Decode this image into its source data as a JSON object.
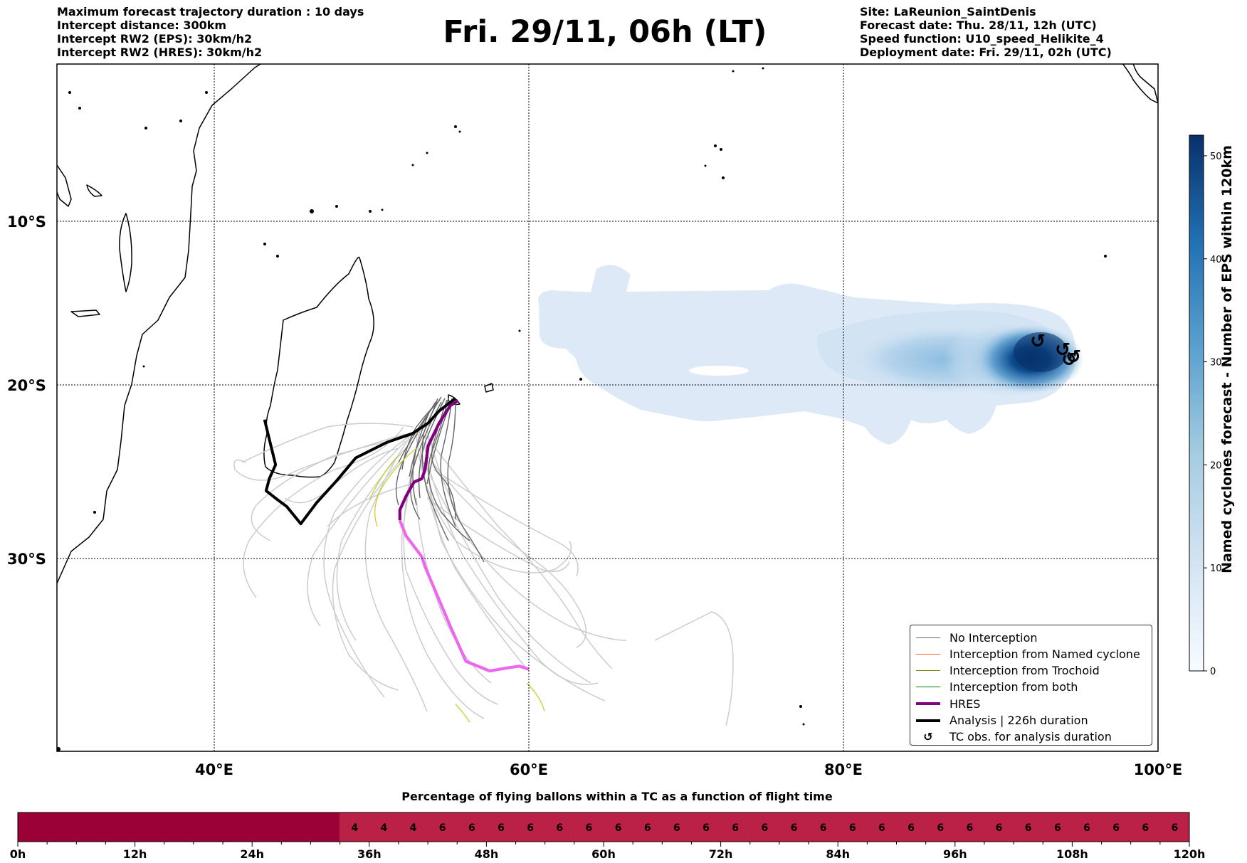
{
  "header_left": [
    "Maximum forecast trajectory duration : 10 days",
    "Intercept distance: 300km",
    "Intercept RW2 (EPS):  30km/h2",
    "Intercept RW2 (HRES): 30km/h2"
  ],
  "header_right": [
    "Site: LaReunion_SaintDenis",
    "Forecast date: Thu. 28/11, 12h (UTC)",
    "Speed function: U10_speed_Helikite_4",
    "Deployment date: Fri. 29/11, 02h (UTC)"
  ],
  "title": "Fri. 29/11, 06h (LT)",
  "colors": {
    "no_interception": "#666666",
    "named_cyclone": "#ff5722",
    "trochoid": "#808000",
    "both": "#008000",
    "hres": "#800080",
    "hres_late": "#ee66ee",
    "analysis": "#000000",
    "strip_dark": "#9b0036",
    "strip_mid": "#bb2046"
  },
  "legend": [
    {
      "label": "No Interception",
      "color": "#666666",
      "style": "thin"
    },
    {
      "label": "Interception from Named cyclone",
      "color": "#ff5722",
      "style": "thin"
    },
    {
      "label": "Interception from Trochoid",
      "color": "#808000",
      "style": "thin"
    },
    {
      "label": "Interception from both",
      "color": "#008000",
      "style": "thin"
    },
    {
      "label": "HRES",
      "color": "#800080",
      "style": "thick"
    },
    {
      "label": "Analysis | 226h duration",
      "color": "#000000",
      "style": "thick"
    },
    {
      "label": "TC obs. for analysis duration",
      "color": "#000000",
      "style": "symbol",
      "icon": "cyclone-icon"
    }
  ],
  "chart_data": [
    {
      "type": "map",
      "x_ticks": [
        {
          "value": 40,
          "label": "40°E"
        },
        {
          "value": 60,
          "label": "60°E"
        },
        {
          "value": 80,
          "label": "80°E"
        },
        {
          "value": 100,
          "label": "100°E"
        }
      ],
      "y_ticks": [
        {
          "value": -10,
          "label": "10°S"
        },
        {
          "value": -20,
          "label": "20°S"
        },
        {
          "value": -30,
          "label": "30°S"
        }
      ],
      "xlim": [
        30,
        100
      ],
      "ylim": [
        -42,
        -0.2
      ],
      "grid": true,
      "legend_position": "bottom-right",
      "hres_track": [
        [
          55.5,
          -20.9
        ],
        [
          55.0,
          -21.2
        ],
        [
          54.3,
          -22.2
        ],
        [
          53.6,
          -23.5
        ],
        [
          53.4,
          -24.9
        ],
        [
          53.2,
          -25.4
        ],
        [
          52.7,
          -25.6
        ],
        [
          52.2,
          -26.4
        ],
        [
          51.8,
          -27.2
        ],
        [
          51.8,
          -27.8
        ]
      ],
      "hres_late_track": [
        [
          51.8,
          -27.8
        ],
        [
          52.2,
          -28.7
        ],
        [
          53.2,
          -29.9
        ],
        [
          53.4,
          -30.5
        ],
        [
          55.0,
          -34.2
        ],
        [
          56.0,
          -36.4
        ],
        [
          57.5,
          -37.0
        ],
        [
          58.7,
          -36.8
        ],
        [
          59.4,
          -36.7
        ],
        [
          60.0,
          -36.9
        ]
      ],
      "analysis_track": [
        [
          55.3,
          -20.8
        ],
        [
          54.3,
          -21.5
        ],
        [
          53.6,
          -22.2
        ],
        [
          52.6,
          -22.8
        ],
        [
          51.0,
          -23.3
        ],
        [
          49.0,
          -24.2
        ],
        [
          47.8,
          -25.5
        ],
        [
          46.5,
          -26.8
        ],
        [
          45.5,
          -28.0
        ],
        [
          44.6,
          -27.0
        ],
        [
          44.0,
          -26.6
        ],
        [
          43.3,
          -26.1
        ],
        [
          43.5,
          -25.4
        ],
        [
          43.9,
          -24.6
        ],
        [
          43.6,
          -23.5
        ],
        [
          43.2,
          -22.0
        ]
      ],
      "tc_observations": [
        [
          92.4,
          -17.8
        ],
        [
          94.0,
          -18.5
        ],
        [
          94.4,
          -19.0
        ],
        [
          94.6,
          -18.8
        ]
      ],
      "density_field": {
        "colorbar": {
          "label": "Named cyclones forecast - Number of EPS within 120km",
          "ticks": [
            0,
            10,
            20,
            30,
            40,
            50
          ],
          "range": [
            0,
            52
          ]
        },
        "max_value": 52,
        "center": [
          92.5,
          -18.5
        ]
      }
    },
    {
      "type": "bar",
      "title": "Percentage of flying ballons within a TC as a function of flight time",
      "x_unit": "h",
      "xlim": [
        0,
        120
      ],
      "x_ticks": [
        {
          "value": 0,
          "label": "0h"
        },
        {
          "value": 12,
          "label": "12h"
        },
        {
          "value": 24,
          "label": "24h"
        },
        {
          "value": 36,
          "label": "36h"
        },
        {
          "value": 48,
          "label": "48h"
        },
        {
          "value": 60,
          "label": "60h"
        },
        {
          "value": 72,
          "label": "72h"
        },
        {
          "value": 84,
          "label": "84h"
        },
        {
          "value": 96,
          "label": "96h"
        },
        {
          "value": 108,
          "label": "108h"
        },
        {
          "value": 120,
          "label": "120h"
        }
      ],
      "dark_until": 33,
      "labels": [
        {
          "x": 34.5,
          "value": 4
        },
        {
          "x": 37.5,
          "value": 4
        },
        {
          "x": 40.5,
          "value": 4
        },
        {
          "x": 43.5,
          "value": 6
        },
        {
          "x": 46.5,
          "value": 6
        },
        {
          "x": 49.5,
          "value": 6
        },
        {
          "x": 52.5,
          "value": 6
        },
        {
          "x": 55.5,
          "value": 6
        },
        {
          "x": 58.5,
          "value": 6
        },
        {
          "x": 61.5,
          "value": 6
        },
        {
          "x": 64.5,
          "value": 6
        },
        {
          "x": 67.5,
          "value": 6
        },
        {
          "x": 70.5,
          "value": 6
        },
        {
          "x": 73.5,
          "value": 6
        },
        {
          "x": 76.5,
          "value": 6
        },
        {
          "x": 79.5,
          "value": 6
        },
        {
          "x": 82.5,
          "value": 6
        },
        {
          "x": 85.5,
          "value": 6
        },
        {
          "x": 88.5,
          "value": 6
        },
        {
          "x": 91.5,
          "value": 6
        },
        {
          "x": 94.5,
          "value": 6
        },
        {
          "x": 97.5,
          "value": 6
        },
        {
          "x": 100.5,
          "value": 6
        },
        {
          "x": 103.5,
          "value": 6
        },
        {
          "x": 106.5,
          "value": 6
        },
        {
          "x": 109.5,
          "value": 6
        },
        {
          "x": 112.5,
          "value": 6
        },
        {
          "x": 115.5,
          "value": 6
        },
        {
          "x": 118.5,
          "value": 6
        }
      ]
    }
  ]
}
